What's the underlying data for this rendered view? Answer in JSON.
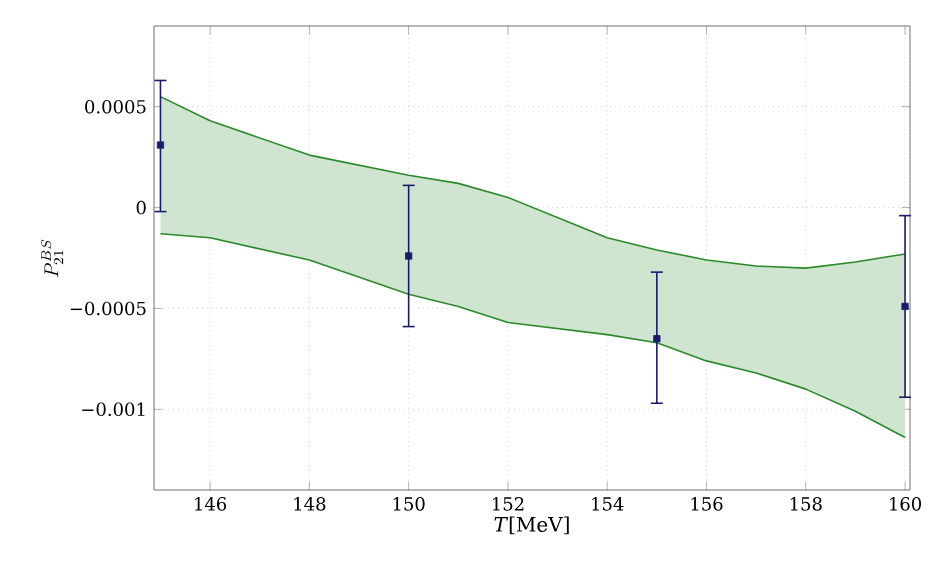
{
  "chart_data": {
    "type": "scatter",
    "xlabel": "*T*[MeV]",
    "ylabel": "P_{21}^{BS}",
    "xlim": [
      144.87,
      160.1
    ],
    "ylim": [
      -0.0014,
      0.0009
    ],
    "xticks": [
      146,
      148,
      150,
      152,
      154,
      156,
      158,
      160
    ],
    "yticks": [
      {
        "value": -0.001,
        "label": "−0.001"
      },
      {
        "value": -0.0005,
        "label": "−0.0005"
      },
      0,
      0.0005
    ],
    "grid": true,
    "series": [
      {
        "type": "line",
        "color": "#2a8a2a",
        "x": [
          145,
          146,
          148,
          150,
          151,
          152,
          154,
          155,
          156,
          157,
          158,
          159,
          160
        ],
        "values": [
          null,
          null,
          null,
          null,
          null,
          null,
          null,
          null,
          null,
          null,
          null,
          null,
          null
        ],
        "upper": [
          0.00055,
          0.00043,
          0.00026,
          0.00016,
          0.00012,
          5e-05,
          -0.00015,
          -0.00021,
          -0.00026,
          -0.00029,
          -0.0003,
          -0.00027,
          -0.00023
        ],
        "lower": [
          -0.00013,
          -0.00015,
          -0.00026,
          -0.00043,
          -0.00049,
          -0.00057,
          -0.00063,
          -0.00067,
          -0.00076,
          -0.00082,
          -0.0009,
          -0.00101,
          -0.00114
        ]
      },
      {
        "type": "line",
        "color": "#2a8a2a",
        "x": [
          145,
          146,
          148,
          150,
          151,
          152,
          154,
          155,
          156,
          157,
          158,
          159,
          160
        ],
        "values": [
          0.00055,
          0.00043,
          0.00026,
          0.00016,
          0.00012,
          5e-05,
          -0.00015,
          -0.00021,
          -0.00026,
          -0.00029,
          -0.0003,
          -0.00027,
          -0.00023
        ]
      },
      {
        "type": "line",
        "color": "#2a8a2a",
        "x": [
          145,
          146,
          148,
          150,
          151,
          152,
          154,
          155,
          156,
          157,
          158,
          159,
          160
        ],
        "values": [
          -0.00013,
          -0.00015,
          -0.00026,
          -0.00043,
          -0.00049,
          -0.00057,
          -0.00063,
          -0.00067,
          -0.00076,
          -0.00082,
          -0.0009,
          -0.00101,
          -0.00114
        ]
      },
      {
        "color": "#1a1a6e",
        "marker": "square",
        "x": [
          145,
          150,
          155,
          160
        ],
        "values": [
          0.00031,
          -0.00024,
          -0.00065,
          -0.00049
        ],
        "errors": [
          [
            -2e-05,
            0.00063
          ],
          [
            -0.00059,
            0.00011
          ],
          [
            -0.00097,
            -0.00032
          ],
          [
            -0.00094,
            -4e-05
          ]
        ]
      }
    ]
  }
}
